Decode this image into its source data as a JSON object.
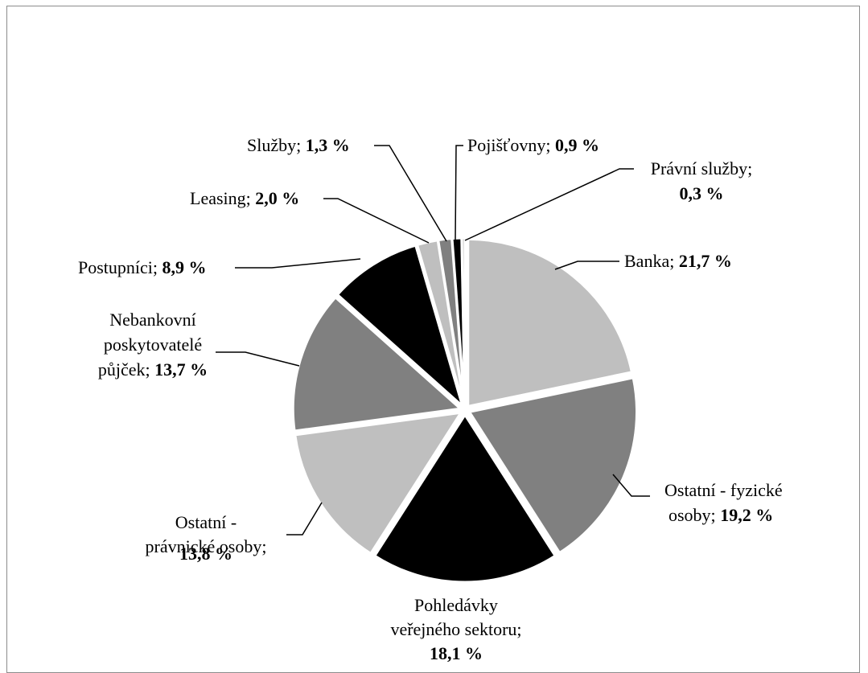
{
  "chart_data": {
    "type": "pie",
    "title": "",
    "slices": [
      {
        "label": "Banka",
        "value": 21.7,
        "value_text": "21,7 %",
        "color": "#bfbfbf"
      },
      {
        "label": "Ostatní - fyzické osoby",
        "value": 19.2,
        "value_text": "19,2 %",
        "color": "#808080"
      },
      {
        "label": "Pohledávky veřejného sektoru",
        "value": 18.1,
        "value_text": "18,1 %",
        "color": "#000000"
      },
      {
        "label": "Ostatní - právnické osoby",
        "value": 13.8,
        "value_text": "13,8 %",
        "color": "#bfbfbf"
      },
      {
        "label": "Nebankovní poskytovatelé půjček",
        "value": 13.7,
        "value_text": "13,7 %",
        "color": "#808080"
      },
      {
        "label": "Postupníci",
        "value": 8.9,
        "value_text": "8,9 %",
        "color": "#000000"
      },
      {
        "label": "Leasing",
        "value": 2.0,
        "value_text": "2,0 %",
        "color": "#bfbfbf"
      },
      {
        "label": "Služby",
        "value": 1.3,
        "value_text": "1,3 %",
        "color": "#808080"
      },
      {
        "label": "Pojišťovny",
        "value": 0.9,
        "value_text": "0,9 %",
        "color": "#000000"
      },
      {
        "label": "Právní služby",
        "value": 0.3,
        "value_text": "0,3 %",
        "color": "#bfbfbf"
      }
    ]
  }
}
